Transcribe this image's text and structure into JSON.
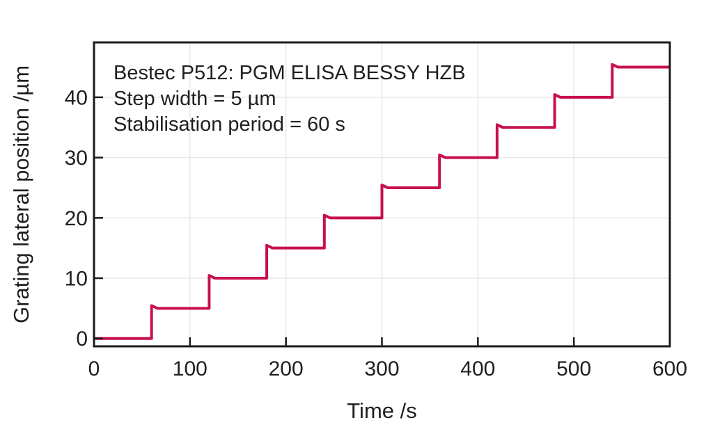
{
  "chart_data": {
    "type": "line",
    "line_style": "step-post",
    "title": "",
    "xlabel": "Time /s",
    "ylabel": "Grating lateral position /µm",
    "xlim": [
      0,
      600
    ],
    "ylim": [
      -1.3,
      49.1
    ],
    "xticks": [
      0,
      100,
      200,
      300,
      400,
      500,
      600
    ],
    "yticks": [
      0,
      10,
      20,
      30,
      40
    ],
    "grid": true,
    "legend": "none",
    "step_duration_s": 60,
    "step_height_um": 5,
    "step_start_times_s": [
      0,
      60,
      120,
      180,
      240,
      300,
      360,
      420,
      480,
      540
    ],
    "step_values_um": [
      0,
      5,
      10,
      15,
      20,
      25,
      30,
      35,
      40,
      45
    ],
    "x_end_s": 600,
    "annotations": [
      "Bestec P512: PGM ELISA BESSY HZB",
      "Step width = 5 µm",
      "Stabilisation period = 60 s"
    ],
    "colors": {
      "series_line": "#c8104b",
      "axis": "#1b1b1b",
      "grid": "#e7e7e7",
      "text": "#1f1f1f",
      "background": "#ffffff"
    }
  }
}
